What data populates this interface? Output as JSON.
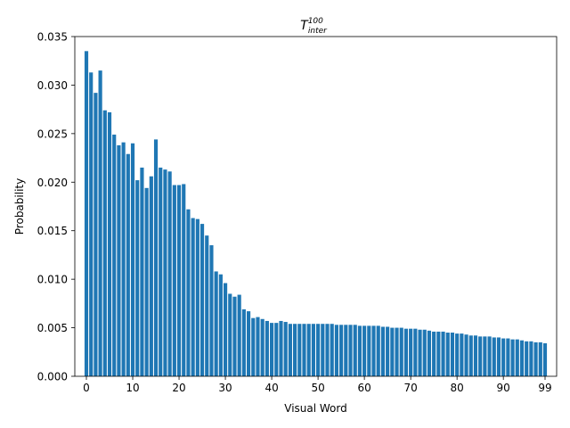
{
  "chart_data": {
    "type": "bar",
    "title": {
      "base": "T",
      "superscript": "100",
      "subscript": "inter"
    },
    "xlabel": "Visual Word",
    "ylabel": "Probability",
    "xlim": [
      -2.5,
      101.5
    ],
    "ylim": [
      0,
      0.035
    ],
    "xticks": [
      0,
      10,
      20,
      30,
      40,
      50,
      60,
      70,
      80,
      90,
      99
    ],
    "xtick_labels": [
      "0",
      "10",
      "20",
      "30",
      "40",
      "50",
      "60",
      "70",
      "80",
      "90",
      "99"
    ],
    "yticks": [
      0,
      0.005,
      0.01,
      0.015,
      0.02,
      0.025,
      0.03,
      0.035
    ],
    "ytick_labels": [
      "0.000",
      "0.005",
      "0.010",
      "0.015",
      "0.020",
      "0.025",
      "0.030",
      "0.035"
    ],
    "grid": false,
    "bar_color": "#1f77b4",
    "x": [
      0,
      1,
      2,
      3,
      4,
      5,
      6,
      7,
      8,
      9,
      10,
      11,
      12,
      13,
      14,
      15,
      16,
      17,
      18,
      19,
      20,
      21,
      22,
      23,
      24,
      25,
      26,
      27,
      28,
      29,
      30,
      31,
      32,
      33,
      34,
      35,
      36,
      37,
      38,
      39,
      40,
      41,
      42,
      43,
      44,
      45,
      46,
      47,
      48,
      49,
      50,
      51,
      52,
      53,
      54,
      55,
      56,
      57,
      58,
      59,
      60,
      61,
      62,
      63,
      64,
      65,
      66,
      67,
      68,
      69,
      70,
      71,
      72,
      73,
      74,
      75,
      76,
      77,
      78,
      79,
      80,
      81,
      82,
      83,
      84,
      85,
      86,
      87,
      88,
      89,
      90,
      91,
      92,
      93,
      94,
      95,
      96,
      97,
      98,
      99
    ],
    "values": [
      0.0335,
      0.0313,
      0.0292,
      0.0315,
      0.0274,
      0.0272,
      0.0249,
      0.0238,
      0.0241,
      0.0229,
      0.024,
      0.0202,
      0.0215,
      0.0194,
      0.0206,
      0.0244,
      0.0215,
      0.0213,
      0.0211,
      0.0197,
      0.0197,
      0.0198,
      0.0172,
      0.0163,
      0.0162,
      0.0157,
      0.0145,
      0.0135,
      0.0108,
      0.0105,
      0.0096,
      0.0085,
      0.0082,
      0.0084,
      0.0069,
      0.0067,
      0.006,
      0.0061,
      0.0059,
      0.0057,
      0.0055,
      0.0055,
      0.0057,
      0.0056,
      0.0054,
      0.0054,
      0.0054,
      0.0054,
      0.0054,
      0.0054,
      0.0054,
      0.0054,
      0.0054,
      0.0054,
      0.0053,
      0.0053,
      0.0053,
      0.0053,
      0.0053,
      0.0052,
      0.0052,
      0.0052,
      0.0052,
      0.0052,
      0.0051,
      0.0051,
      0.005,
      0.005,
      0.005,
      0.0049,
      0.0049,
      0.0049,
      0.0048,
      0.0048,
      0.0047,
      0.0046,
      0.0046,
      0.0046,
      0.0045,
      0.0045,
      0.0044,
      0.0044,
      0.0043,
      0.0042,
      0.0042,
      0.0041,
      0.0041,
      0.0041,
      0.004,
      0.004,
      0.0039,
      0.0039,
      0.0038,
      0.0038,
      0.0037,
      0.0036,
      0.0036,
      0.0035,
      0.0035,
      0.0034
    ]
  }
}
